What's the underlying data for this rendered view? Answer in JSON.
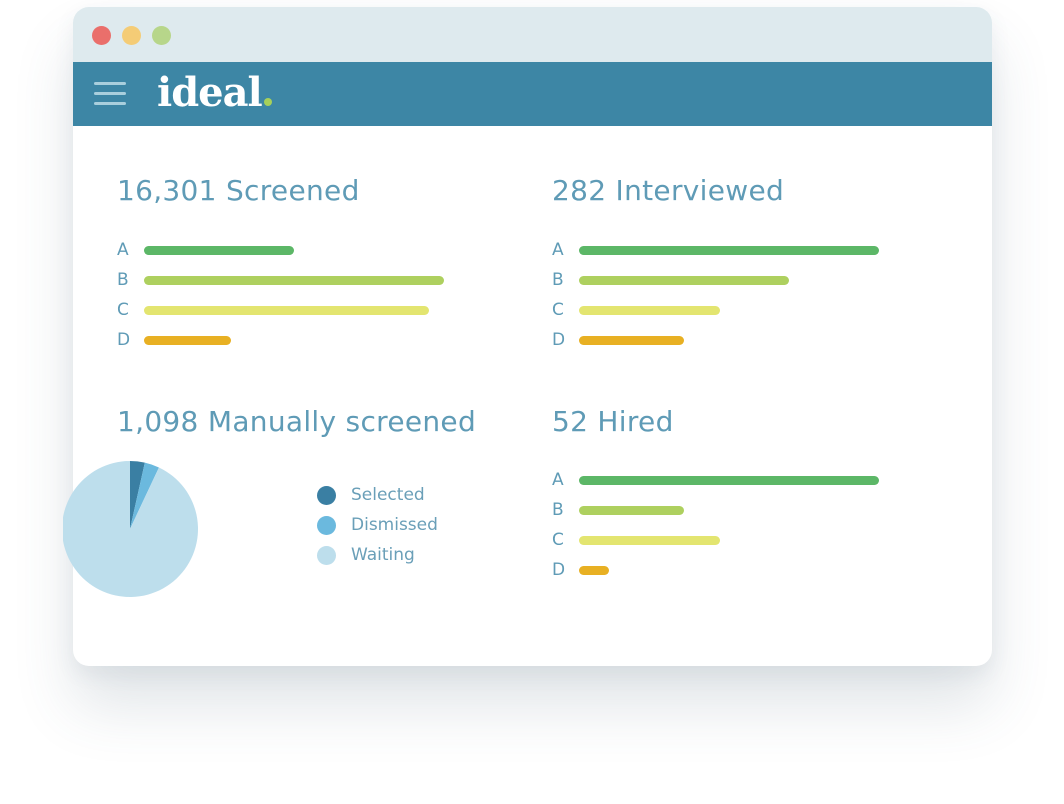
{
  "app": {
    "logo_text": "ideal"
  },
  "colors": {
    "grade_a": "#5cb767",
    "grade_b": "#aed05f",
    "grade_c": "#e3e570",
    "grade_d": "#e8b023",
    "selected": "#3a7fa3",
    "dismissed": "#6bb9de",
    "waiting": "#bddeec"
  },
  "panels": {
    "screened": {
      "title": "16,301 Screened",
      "grades": [
        {
          "label": "A",
          "value": 0.5
        },
        {
          "label": "B",
          "value": 1.0
        },
        {
          "label": "C",
          "value": 0.95
        },
        {
          "label": "D",
          "value": 0.29
        }
      ]
    },
    "interviewed": {
      "title": "282 Interviewed",
      "grades": [
        {
          "label": "A",
          "value": 1.0
        },
        {
          "label": "B",
          "value": 0.7
        },
        {
          "label": "C",
          "value": 0.47
        },
        {
          "label": "D",
          "value": 0.35
        }
      ]
    },
    "manual": {
      "title": "1,098 Manually screened",
      "legend": [
        {
          "label": "Selected",
          "color": "#3a7fa3"
        },
        {
          "label": "Dismissed",
          "color": "#6bb9de"
        },
        {
          "label": "Waiting",
          "color": "#bddeec"
        }
      ]
    },
    "hired": {
      "title": "52 Hired",
      "grades": [
        {
          "label": "A",
          "value": 1.0
        },
        {
          "label": "B",
          "value": 0.35
        },
        {
          "label": "C",
          "value": 0.47
        },
        {
          "label": "D",
          "value": 0.1
        }
      ]
    }
  },
  "chart_data": {
    "type": "pie",
    "categories": [
      "Selected",
      "Dismissed",
      "Waiting"
    ],
    "values": [
      3.5,
      3.5,
      93
    ],
    "colors": [
      "#3a7fa3",
      "#6bb9de",
      "#bddeec"
    ]
  }
}
